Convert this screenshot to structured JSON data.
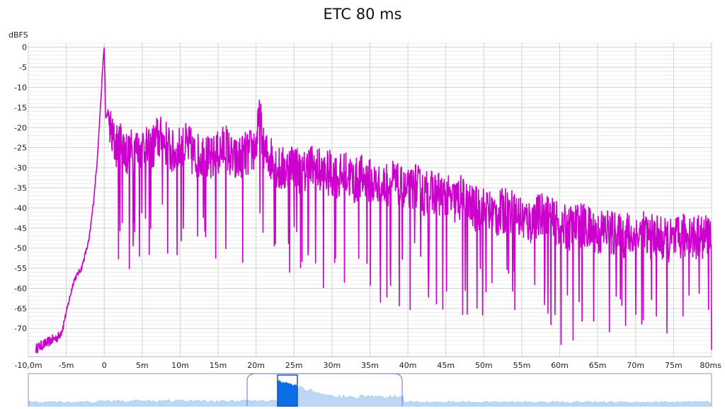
{
  "chart_data": {
    "type": "line",
    "title": "ETC 80 ms",
    "ylabel": "dBFS",
    "xlabel": "",
    "xlim": [
      -10,
      80
    ],
    "ylim": [
      -77,
      1
    ],
    "grid": true,
    "x_ticks": [
      {
        "v": -10,
        "label": "-10,0m"
      },
      {
        "v": -5,
        "label": "-5m"
      },
      {
        "v": 0,
        "label": "0"
      },
      {
        "v": 5,
        "label": "5m"
      },
      {
        "v": 10,
        "label": "10m"
      },
      {
        "v": 15,
        "label": "15m"
      },
      {
        "v": 20,
        "label": "20m"
      },
      {
        "v": 25,
        "label": "25m"
      },
      {
        "v": 30,
        "label": "30m"
      },
      {
        "v": 35,
        "label": "35m"
      },
      {
        "v": 40,
        "label": "40m"
      },
      {
        "v": 45,
        "label": "45m"
      },
      {
        "v": 50,
        "label": "50m"
      },
      {
        "v": 55,
        "label": "55m"
      },
      {
        "v": 60,
        "label": "60m"
      },
      {
        "v": 65,
        "label": "65m"
      },
      {
        "v": 70,
        "label": "70m"
      },
      {
        "v": 75,
        "label": "75m"
      },
      {
        "v": 80,
        "label": "80ms"
      }
    ],
    "y_ticks": [
      {
        "v": 0,
        "label": "0"
      },
      {
        "v": -5,
        "label": "-5"
      },
      {
        "v": -10,
        "label": "-10"
      },
      {
        "v": -15,
        "label": "-15"
      },
      {
        "v": -20,
        "label": "-20"
      },
      {
        "v": -25,
        "label": "-25"
      },
      {
        "v": -30,
        "label": "-30"
      },
      {
        "v": -35,
        "label": "-35"
      },
      {
        "v": -40,
        "label": "-40"
      },
      {
        "v": -45,
        "label": "-45"
      },
      {
        "v": -50,
        "label": "-50"
      },
      {
        "v": -55,
        "label": "-55"
      },
      {
        "v": -60,
        "label": "-60"
      },
      {
        "v": -65,
        "label": "-65"
      },
      {
        "v": -70,
        "label": "-70"
      }
    ],
    "series": [
      {
        "color": "#cc00cc",
        "x": [
          -9,
          -8,
          -7,
          -6,
          -5.5,
          -5,
          -4,
          -3,
          -2,
          -1.5,
          -1,
          -0.5,
          -0.2,
          0,
          0.2,
          0.5,
          1,
          1.5,
          2,
          2.5,
          3,
          4,
          5,
          6,
          7,
          8,
          9,
          10,
          11,
          12,
          13,
          14,
          15,
          16,
          17,
          18,
          19,
          20,
          20.5,
          21,
          22,
          23,
          24,
          25,
          26,
          27,
          28,
          29,
          30,
          31,
          32,
          33,
          34,
          35,
          36,
          37,
          38,
          39,
          40,
          41,
          42,
          43,
          44,
          45,
          46,
          47,
          48,
          49,
          50,
          51,
          52,
          53,
          54,
          55,
          56,
          57,
          58,
          59,
          60,
          61,
          62,
          63,
          64,
          65,
          66,
          67,
          68,
          69,
          70,
          71,
          72,
          73,
          74,
          75,
          76,
          77,
          78,
          79,
          80
        ],
        "y": [
          -75,
          -74,
          -73,
          -72,
          -70,
          -66,
          -58,
          -55,
          -48,
          -40,
          -30,
          -15,
          -5,
          0,
          -18,
          -16,
          -22,
          -24,
          -23,
          -24,
          -26,
          -25,
          -24,
          -26,
          -22,
          -23,
          -26,
          -25,
          -24,
          -27,
          -26,
          -28,
          -26,
          -24,
          -28,
          -27,
          -26,
          -24,
          -17,
          -26,
          -27,
          -30,
          -30,
          -28,
          -32,
          -29,
          -30,
          -31,
          -31,
          -32,
          -31,
          -33,
          -32,
          -33,
          -34,
          -34,
          -33,
          -35,
          -36,
          -34,
          -36,
          -36,
          -36,
          -37,
          -38,
          -37,
          -39,
          -40,
          -40,
          -41,
          -41,
          -40,
          -41,
          -42,
          -43,
          -42,
          -41,
          -43,
          -44,
          -45,
          -44,
          -44,
          -45,
          -46,
          -45,
          -46,
          -47,
          -46,
          -47,
          -46,
          -47,
          -47,
          -48,
          -48,
          -47,
          -46,
          -47,
          -47,
          -46
        ]
      }
    ]
  }
}
